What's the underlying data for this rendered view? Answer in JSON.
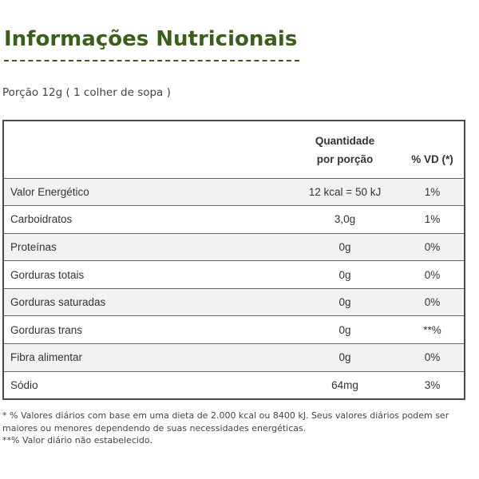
{
  "title": "Informações Nutricionais",
  "portion": "Porção 12g ( 1 colher de sopa )",
  "table": {
    "headers": {
      "nutrient": "",
      "quantity_line1": "Quantidade",
      "quantity_line2": "por porção",
      "vd": "% VD (*)"
    },
    "rows": [
      {
        "name": "Valor Energético",
        "quantity": "12 kcal = 50 kJ",
        "vd": "1%"
      },
      {
        "name": "Carboidratos",
        "quantity": "3,0g",
        "vd": "1%"
      },
      {
        "name": "Proteínas",
        "quantity": "0g",
        "vd": "0%"
      },
      {
        "name": "Gorduras totais",
        "quantity": "0g",
        "vd": "0%"
      },
      {
        "name": "Gorduras saturadas",
        "quantity": "0g",
        "vd": "0%"
      },
      {
        "name": "Gorduras trans",
        "quantity": "0g",
        "vd": "**%"
      },
      {
        "name": "Fibra alimentar",
        "quantity": "0g",
        "vd": "0%"
      },
      {
        "name": "Sódio",
        "quantity": "64mg",
        "vd": "3%"
      }
    ]
  },
  "footnotes": {
    "note1": "* % Valores diários com base em uma dieta de 2.000 kcal ou 8400 kJ. Seus valores diários podem ser maiores ou menores dependendo de suas necessidades energéticas.",
    "note2": "**% Valor diário não estabelecido."
  },
  "colors": {
    "title": "#3a5f1c",
    "row_shade": "#f2f2f2",
    "border": "#4a4a4a"
  }
}
